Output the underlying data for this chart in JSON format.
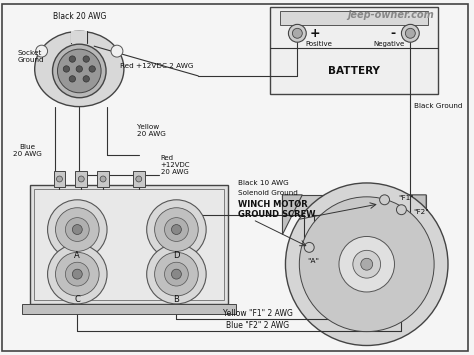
{
  "background_color": "#f5f5f5",
  "watermark": "jeep-owner.com",
  "labels": {
    "black_20awg": "Black 20 AWG",
    "socket_ground": "Socket\nGround",
    "blue_20awg": "Blue\n20 AWG",
    "yellow_20awg": "Yellow\n20 AWG",
    "red_12vdc_top": "Red +12VDC 2 AWG",
    "red_12vdc": "Red\n+12VDC\n20 AWG",
    "black_10awg": "Black 10 AWG",
    "solenoid_ground": "Solenoid Ground",
    "black_ground": "Black Ground",
    "winch_motor": "WINCH MOTOR\nGROUND SCREW",
    "battery": "BATTERY",
    "positive": "Positive",
    "negative": "Negative",
    "plus": "+",
    "minus": "-",
    "f1": "\"F1\"",
    "f2": "\"F2\"",
    "a_terminal": "\"A\"",
    "yellow_f1": "Yellow \"F1\" 2 AWG",
    "blue_f2": "Blue \"F2\" 2 AWG",
    "A": "A",
    "B": "B",
    "C": "C",
    "D": "D"
  }
}
